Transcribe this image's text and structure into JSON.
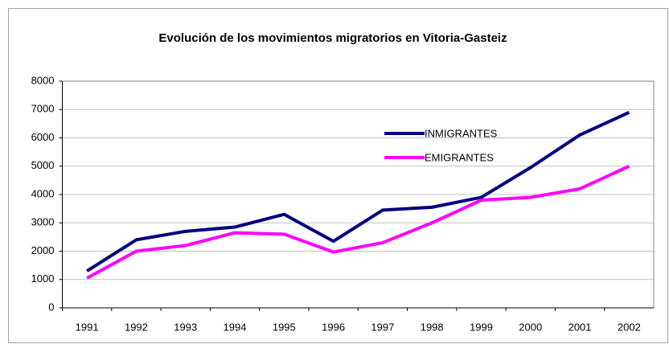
{
  "chart_data": {
    "type": "line",
    "title": "Evolución de los movimientos migratorios en Vitoria-Gasteiz",
    "categories": [
      "1991",
      "1992",
      "1993",
      "1994",
      "1995",
      "1996",
      "1997",
      "1998",
      "1999",
      "2000",
      "2001",
      "2002"
    ],
    "series": [
      {
        "name": "INMIGRANTES",
        "color": "#000080",
        "values": [
          1300,
          2400,
          2700,
          2850,
          3300,
          2350,
          3450,
          3550,
          3900,
          4950,
          6100,
          6900
        ]
      },
      {
        "name": "EMIGRANTES",
        "color": "#ff00ff",
        "values": [
          1050,
          2000,
          2200,
          2650,
          2600,
          1970,
          2300,
          3000,
          3800,
          3900,
          4200,
          5000
        ]
      }
    ],
    "ylim": [
      0,
      8000
    ],
    "yticks": [
      0,
      1000,
      2000,
      3000,
      4000,
      5000,
      6000,
      7000,
      8000
    ],
    "grid": true,
    "legend": "upper-right"
  }
}
